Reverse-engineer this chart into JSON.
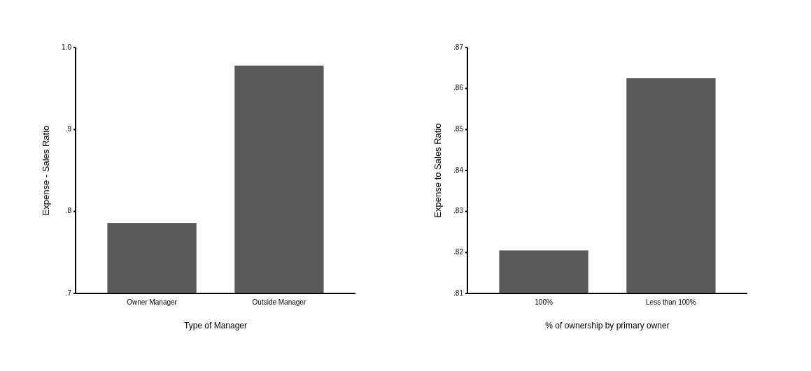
{
  "chart_data": [
    {
      "type": "bar",
      "xlabel": "Type of Manager",
      "ylabel": "Expense - Sales Ratio",
      "categories": [
        "Owner Manager",
        "Outside Manager"
      ],
      "values": [
        0.786,
        0.978
      ],
      "color": "#5a5a5a",
      "ylim": [
        0.7,
        1.0
      ],
      "yticks": [
        {
          "value": 0.7,
          "label": ".7"
        },
        {
          "value": 0.8,
          "label": ".8"
        },
        {
          "value": 0.9,
          "label": ".9"
        },
        {
          "value": 1.0,
          "label": "1.0"
        }
      ]
    },
    {
      "type": "bar",
      "xlabel": "% of ownership by primary owner",
      "ylabel": "Expense to Sales Ratio",
      "categories": [
        "100%",
        "Less than 100%"
      ],
      "values": [
        0.8205,
        0.8625
      ],
      "color": "#5a5a5a",
      "ylim": [
        0.81,
        0.87
      ],
      "yticks": [
        {
          "value": 0.81,
          "label": ".81"
        },
        {
          "value": 0.82,
          "label": ".82"
        },
        {
          "value": 0.83,
          "label": ".83"
        },
        {
          "value": 0.84,
          "label": ".84"
        },
        {
          "value": 0.85,
          "label": ".85"
        },
        {
          "value": 0.86,
          "label": ".86"
        },
        {
          "value": 0.87,
          "label": ".87"
        }
      ]
    }
  ]
}
